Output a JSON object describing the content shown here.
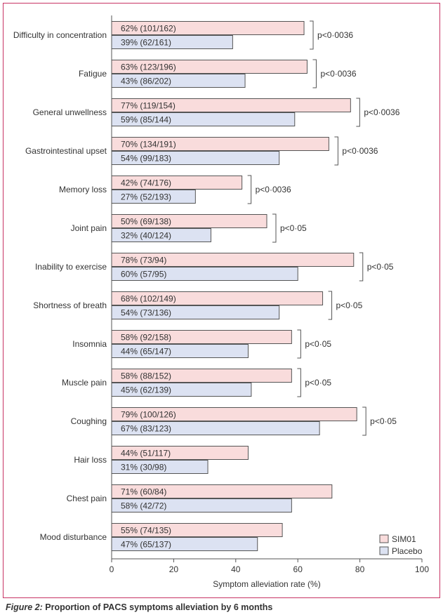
{
  "chart_data": {
    "type": "bar",
    "orientation": "horizontal",
    "xlabel": "Symptom alleviation rate (%)",
    "xlim": [
      0,
      100
    ],
    "xticks": [
      "0",
      "20",
      "40",
      "60",
      "80",
      "100"
    ],
    "grid": false,
    "legend_position": "bottom-right",
    "series": [
      {
        "name": "SIM01",
        "color": "#f9dcdc"
      },
      {
        "name": "Placebo",
        "color": "#dce2f2"
      }
    ],
    "categories": [
      {
        "label": "Difficulty in concentration",
        "sim01": 62,
        "sim01_label": "62% (101/162)",
        "placebo": 39,
        "placebo_label": "39% (62/161)",
        "p": "p<0·0036"
      },
      {
        "label": "Fatigue",
        "sim01": 63,
        "sim01_label": "63% (123/196)",
        "placebo": 43,
        "placebo_label": "43% (86/202)",
        "p": "p<0·0036"
      },
      {
        "label": "General unwellness",
        "sim01": 77,
        "sim01_label": "77% (119/154)",
        "placebo": 59,
        "placebo_label": "59% (85/144)",
        "p": "p<0·0036"
      },
      {
        "label": "Gastrointestinal upset",
        "sim01": 70,
        "sim01_label": "70% (134/191)",
        "placebo": 54,
        "placebo_label": "54% (99/183)",
        "p": "p<0·0036"
      },
      {
        "label": "Memory loss",
        "sim01": 42,
        "sim01_label": "42% (74/176)",
        "placebo": 27,
        "placebo_label": "27% (52/193)",
        "p": "p<0·0036"
      },
      {
        "label": "Joint pain",
        "sim01": 50,
        "sim01_label": "50% (69/138)",
        "placebo": 32,
        "placebo_label": "32% (40/124)",
        "p": "p<0·05"
      },
      {
        "label": "Inability to exercise",
        "sim01": 78,
        "sim01_label": "78% (73/94)",
        "placebo": 60,
        "placebo_label": "60% (57/95)",
        "p": "p<0·05"
      },
      {
        "label": "Shortness of breath",
        "sim01": 68,
        "sim01_label": "68% (102/149)",
        "placebo": 54,
        "placebo_label": "54% (73/136)",
        "p": "p<0·05"
      },
      {
        "label": "Insomnia",
        "sim01": 58,
        "sim01_label": "58% (92/158)",
        "placebo": 44,
        "placebo_label": "44% (65/147)",
        "p": "p<0·05"
      },
      {
        "label": "Muscle pain",
        "sim01": 58,
        "sim01_label": "58% (88/152)",
        "placebo": 45,
        "placebo_label": "45% (62/139)",
        "p": "p<0·05"
      },
      {
        "label": "Coughing",
        "sim01": 79,
        "sim01_label": "79% (100/126)",
        "placebo": 67,
        "placebo_label": "67% (83/123)",
        "p": "p<0·05"
      },
      {
        "label": "Hair loss",
        "sim01": 44,
        "sim01_label": "44% (51/117)",
        "placebo": 31,
        "placebo_label": "31% (30/98)",
        "p": ""
      },
      {
        "label": "Chest pain",
        "sim01": 71,
        "sim01_label": "71% (60/84)",
        "placebo": 58,
        "placebo_label": "58% (42/72)",
        "p": ""
      },
      {
        "label": "Mood disturbance",
        "sim01": 55,
        "sim01_label": "55% (74/135)",
        "placebo": 47,
        "placebo_label": "47% (65/137)",
        "p": ""
      }
    ]
  },
  "caption": {
    "label": "Figure 2:",
    "text": " Proportion of PACS symptoms alleviation by 6 months"
  },
  "colors": {
    "frame": "#c83464",
    "bar_stroke": "#555555",
    "text": "#333333"
  }
}
